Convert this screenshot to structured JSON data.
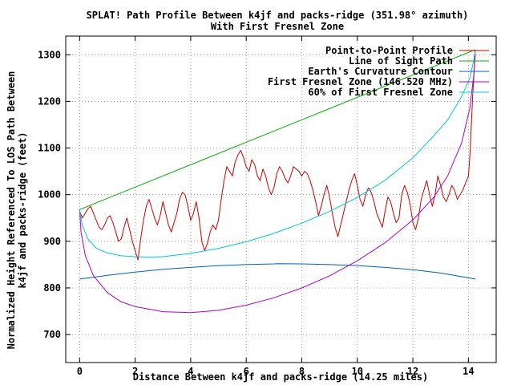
{
  "chart_data": {
    "type": "line",
    "title": "SPLAT! Path Profile Between k4jf and packs-ridge (351.98° azimuth)",
    "subtitle": "With First Fresnel Zone",
    "xlabel": "Distance Between k4jf and packs-ridge (14.25 miles)",
    "ylabel_line1": "Normalized Height Referenced To LOS Path Between",
    "ylabel_line2": "k4jf and packs-ridge (feet)",
    "xlim": [
      -0.5,
      15
    ],
    "ylim": [
      640,
      1340
    ],
    "x_ticks": [
      0,
      2,
      4,
      6,
      8,
      10,
      12,
      14
    ],
    "y_ticks": [
      700,
      800,
      900,
      1000,
      1100,
      1200,
      1300
    ],
    "grid": true,
    "legend_position": "top-right",
    "series": [
      {
        "name": "Point-to-Point Profile",
        "color": "#cc0000",
        "x": [
          0,
          0.1,
          0.2,
          0.3,
          0.4,
          0.5,
          0.6,
          0.7,
          0.8,
          0.9,
          1.0,
          1.1,
          1.2,
          1.3,
          1.4,
          1.5,
          1.6,
          1.7,
          1.8,
          1.9,
          2.0,
          2.1,
          2.2,
          2.3,
          2.4,
          2.5,
          2.6,
          2.7,
          2.8,
          2.9,
          3.0,
          3.1,
          3.2,
          3.3,
          3.4,
          3.5,
          3.6,
          3.7,
          3.8,
          3.9,
          4.0,
          4.1,
          4.2,
          4.3,
          4.4,
          4.5,
          4.6,
          4.7,
          4.8,
          4.9,
          5.0,
          5.1,
          5.2,
          5.3,
          5.4,
          5.5,
          5.6,
          5.7,
          5.8,
          5.9,
          6.0,
          6.1,
          6.2,
          6.3,
          6.4,
          6.5,
          6.6,
          6.7,
          6.8,
          6.9,
          7.0,
          7.1,
          7.2,
          7.3,
          7.4,
          7.5,
          7.6,
          7.7,
          7.8,
          7.9,
          8.0,
          8.1,
          8.2,
          8.3,
          8.4,
          8.5,
          8.6,
          8.7,
          8.8,
          8.9,
          9.0,
          9.1,
          9.2,
          9.3,
          9.4,
          9.5,
          9.6,
          9.7,
          9.8,
          9.9,
          10.0,
          10.1,
          10.2,
          10.3,
          10.4,
          10.5,
          10.6,
          10.7,
          10.8,
          10.9,
          11.0,
          11.1,
          11.2,
          11.3,
          11.4,
          11.5,
          11.6,
          11.7,
          11.8,
          11.9,
          12.0,
          12.1,
          12.2,
          12.3,
          12.4,
          12.5,
          12.6,
          12.7,
          12.8,
          12.9,
          13.0,
          13.1,
          13.2,
          13.3,
          13.4,
          13.5,
          13.6,
          13.7,
          13.8,
          13.9,
          14.0,
          14.05,
          14.1,
          14.15,
          14.2,
          14.25
        ],
        "y": [
          965,
          950,
          960,
          970,
          975,
          960,
          945,
          930,
          925,
          935,
          950,
          955,
          940,
          920,
          900,
          905,
          930,
          950,
          925,
          900,
          880,
          860,
          905,
          945,
          975,
          990,
          970,
          950,
          935,
          955,
          985,
          960,
          935,
          920,
          940,
          960,
          990,
          1005,
          1000,
          975,
          945,
          960,
          985,
          950,
          900,
          880,
          895,
          920,
          935,
          925,
          945,
          990,
          1030,
          1060,
          1050,
          1040,
          1070,
          1085,
          1095,
          1080,
          1060,
          1050,
          1075,
          1065,
          1040,
          1030,
          1055,
          1040,
          1015,
          1000,
          1015,
          1045,
          1060,
          1050,
          1035,
          1025,
          1040,
          1060,
          1055,
          1050,
          1040,
          1050,
          1045,
          1030,
          1010,
          985,
          955,
          975,
          1000,
          1020,
          995,
          960,
          930,
          910,
          935,
          960,
          985,
          1010,
          1030,
          1045,
          1020,
          990,
          975,
          1000,
          1015,
          1005,
          985,
          960,
          945,
          930,
          965,
          995,
          985,
          960,
          940,
          950,
          1000,
          1020,
          1005,
          980,
          940,
          925,
          950,
          990,
          1010,
          1030,
          1000,
          975,
          1000,
          1040,
          1020,
          995,
          985,
          1000,
          1020,
          1010,
          990,
          1000,
          1010,
          1025,
          1040,
          1080,
          1140,
          1210,
          1260,
          1300
        ]
      },
      {
        "name": "Line of Sight Path",
        "color": "#00b000",
        "x": [
          0,
          14.25
        ],
        "y": [
          968,
          1311
        ]
      },
      {
        "name": "Earth's Curvature Contour",
        "color": "#0060c0",
        "x": [
          0,
          1,
          2,
          3,
          4,
          5,
          6,
          7,
          7.125,
          8,
          9,
          10,
          11,
          12,
          13,
          14.25
        ],
        "y": [
          819,
          827,
          834,
          840,
          844,
          848,
          850,
          851.5,
          852,
          851.5,
          850,
          848,
          844,
          839,
          832,
          819
        ]
      },
      {
        "name": "First Fresnel Zone (146.520 MHz)",
        "color": "#b000d0",
        "x": [
          0,
          0.05,
          0.2,
          0.5,
          1,
          1.5,
          2,
          3,
          4,
          5,
          6,
          7,
          8,
          9,
          10,
          11,
          12,
          12.75,
          13.25,
          13.75,
          14.05,
          14.2,
          14.25
        ],
        "y": [
          968,
          920,
          870,
          826,
          790,
          770,
          760,
          749,
          747,
          752,
          763,
          779,
          800,
          826,
          858,
          897,
          946,
          994,
          1040,
          1110,
          1185,
          1260,
          1311
        ]
      },
      {
        "name": "60% of First Fresnel Zone",
        "color": "#00c8d8",
        "x": [
          0,
          0.1,
          0.3,
          0.6,
          1,
          1.5,
          2,
          2.5,
          3,
          4,
          5,
          6,
          7,
          8,
          9,
          10,
          11,
          12,
          12.75,
          13.25,
          13.75,
          14.05,
          14.2,
          14.25
        ],
        "y": [
          968,
          933,
          905,
          885,
          875,
          869,
          867,
          866,
          867,
          874,
          885,
          899,
          917,
          939,
          964,
          994,
          1031,
          1079,
          1126,
          1160,
          1210,
          1250,
          1290,
          1311
        ]
      }
    ]
  }
}
